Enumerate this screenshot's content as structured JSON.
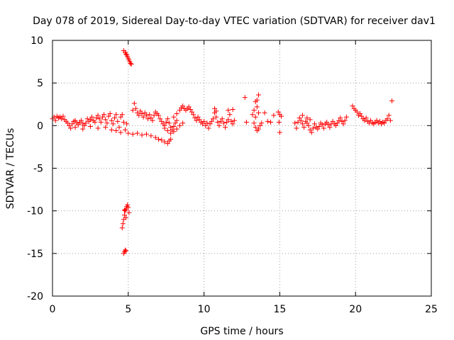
{
  "chart_data": {
    "type": "scatter",
    "title": "Day 078 of 2019, Sidereal Day-to-day VTEC variation (SDTVAR) for receiver dav1",
    "xlabel": "GPS time / hours",
    "ylabel": "SDTVAR / TECUs",
    "xlim": [
      0,
      25
    ],
    "ylim": [
      -20,
      10
    ],
    "x_ticks": [
      0,
      5,
      10,
      15,
      20,
      25
    ],
    "x_tick_labels": [
      "0",
      "5",
      "10",
      "15",
      "20",
      "25"
    ],
    "y_ticks": [
      -20,
      -15,
      -10,
      -5,
      0,
      5,
      10
    ],
    "y_tick_labels": [
      "-20",
      "-15",
      "-10",
      "-5",
      "0",
      "5",
      "10"
    ],
    "grid": true,
    "marker": "+",
    "color": "#ff0000",
    "series": [
      {
        "name": "SDTVAR",
        "points": [
          [
            0.0,
            0.8
          ],
          [
            0.1,
            1.0
          ],
          [
            0.2,
            0.6
          ],
          [
            0.3,
            1.1
          ],
          [
            0.4,
            0.9
          ],
          [
            0.5,
            1.0
          ],
          [
            0.6,
            0.8
          ],
          [
            0.7,
            1.1
          ],
          [
            0.8,
            0.7
          ],
          [
            0.9,
            0.5
          ],
          [
            1.0,
            0.3
          ],
          [
            1.1,
            0.0
          ],
          [
            1.2,
            -0.3
          ],
          [
            1.3,
            0.2
          ],
          [
            1.4,
            0.5
          ],
          [
            1.5,
            0.6
          ],
          [
            1.6,
            0.3
          ],
          [
            1.7,
            0.1
          ],
          [
            1.8,
            0.4
          ],
          [
            1.9,
            0.6
          ],
          [
            2.0,
            0.2
          ],
          [
            2.1,
            0.0
          ],
          [
            2.2,
            0.3
          ],
          [
            2.3,
            0.8
          ],
          [
            2.4,
            0.5
          ],
          [
            2.5,
            0.7
          ],
          [
            2.6,
            1.0
          ],
          [
            2.7,
            0.6
          ],
          [
            2.8,
            0.4
          ],
          [
            2.9,
            0.9
          ],
          [
            3.0,
            1.2
          ],
          [
            3.1,
            0.8
          ],
          [
            3.2,
            0.4
          ],
          [
            3.3,
            1.0
          ],
          [
            3.4,
            1.3
          ],
          [
            3.5,
            0.7
          ],
          [
            3.6,
            0.3
          ],
          [
            3.7,
            1.1
          ],
          [
            3.8,
            1.4
          ],
          [
            3.9,
            0.6
          ],
          [
            4.0,
            0.2
          ],
          [
            4.1,
            0.9
          ],
          [
            4.2,
            1.3
          ],
          [
            4.3,
            0.5
          ],
          [
            4.4,
            -0.2
          ],
          [
            4.5,
            1.0
          ],
          [
            4.6,
            1.3
          ],
          [
            4.7,
            0.4
          ],
          [
            4.8,
            -0.5
          ],
          [
            4.9,
            0.2
          ],
          [
            1.5,
            -0.2
          ],
          [
            2.0,
            -0.4
          ],
          [
            2.5,
            -0.1
          ],
          [
            3.0,
            -0.3
          ],
          [
            3.5,
            -0.2
          ],
          [
            3.9,
            -0.5
          ],
          [
            4.2,
            -0.6
          ],
          [
            4.5,
            -0.8
          ],
          [
            4.7,
            8.8
          ],
          [
            4.8,
            8.6
          ],
          [
            4.85,
            8.4
          ],
          [
            4.9,
            8.3
          ],
          [
            4.95,
            8.1
          ],
          [
            5.0,
            7.9
          ],
          [
            5.05,
            7.7
          ],
          [
            5.1,
            7.5
          ],
          [
            5.15,
            7.3
          ],
          [
            5.2,
            7.2
          ],
          [
            4.6,
            -12.0
          ],
          [
            4.65,
            -11.5
          ],
          [
            4.7,
            -11.0
          ],
          [
            4.75,
            -10.5
          ],
          [
            4.8,
            -10.0
          ],
          [
            4.85,
            -9.8
          ],
          [
            4.9,
            -9.5
          ],
          [
            4.95,
            -9.3
          ],
          [
            5.0,
            -9.6
          ],
          [
            5.05,
            -10.2
          ],
          [
            4.75,
            -9.9
          ],
          [
            4.85,
            -10.8
          ],
          [
            4.7,
            -15.0
          ],
          [
            4.75,
            -14.8
          ],
          [
            4.8,
            -14.6
          ],
          [
            4.85,
            -14.7
          ],
          [
            5.0,
            -0.9
          ],
          [
            5.3,
            -1.0
          ],
          [
            5.6,
            -0.9
          ],
          [
            5.9,
            -1.1
          ],
          [
            6.2,
            -1.0
          ],
          [
            6.5,
            -1.2
          ],
          [
            6.8,
            -1.4
          ],
          [
            7.0,
            -1.6
          ],
          [
            7.2,
            -1.7
          ],
          [
            7.4,
            -1.9
          ],
          [
            7.6,
            -2.1
          ],
          [
            7.7,
            -1.8
          ],
          [
            7.8,
            -1.6
          ],
          [
            5.3,
            1.8
          ],
          [
            5.4,
            2.6
          ],
          [
            5.5,
            2.0
          ],
          [
            5.6,
            1.5
          ],
          [
            5.7,
            1.2
          ],
          [
            5.8,
            1.7
          ],
          [
            5.9,
            1.4
          ],
          [
            6.0,
            1.0
          ],
          [
            6.1,
            1.5
          ],
          [
            6.2,
            1.2
          ],
          [
            6.3,
            0.8
          ],
          [
            6.4,
            1.3
          ],
          [
            6.5,
            0.9
          ],
          [
            6.6,
            0.6
          ],
          [
            6.7,
            1.2
          ],
          [
            6.8,
            1.6
          ],
          [
            6.9,
            1.4
          ],
          [
            7.0,
            1.2
          ],
          [
            7.1,
            0.8
          ],
          [
            7.2,
            0.5
          ],
          [
            7.3,
            0.2
          ],
          [
            7.4,
            0.0
          ],
          [
            7.5,
            0.4
          ],
          [
            7.6,
            0.8
          ],
          [
            7.7,
            0.3
          ],
          [
            7.8,
            -0.2
          ],
          [
            7.9,
            -0.5
          ],
          [
            8.0,
            -0.1
          ],
          [
            8.1,
            0.3
          ],
          [
            8.2,
            0.6
          ],
          [
            7.4,
            -0.3
          ],
          [
            7.6,
            -0.6
          ],
          [
            7.8,
            -0.9
          ],
          [
            8.0,
            -0.7
          ],
          [
            8.2,
            -0.4
          ],
          [
            8.4,
            0.0
          ],
          [
            8.6,
            0.3
          ],
          [
            8.0,
            1.0
          ],
          [
            8.2,
            1.4
          ],
          [
            8.4,
            1.8
          ],
          [
            8.5,
            2.1
          ],
          [
            8.6,
            2.3
          ],
          [
            8.7,
            2.0
          ],
          [
            8.8,
            1.8
          ],
          [
            8.9,
            2.0
          ],
          [
            9.0,
            2.2
          ],
          [
            9.1,
            1.9
          ],
          [
            9.2,
            1.6
          ],
          [
            9.3,
            1.3
          ],
          [
            9.4,
            0.9
          ],
          [
            9.5,
            0.6
          ],
          [
            9.6,
            1.0
          ],
          [
            9.7,
            0.7
          ],
          [
            9.8,
            0.4
          ],
          [
            9.9,
            0.2
          ],
          [
            10.0,
            0.5
          ],
          [
            10.1,
            0.0
          ],
          [
            10.2,
            0.3
          ],
          [
            10.3,
            -0.3
          ],
          [
            10.4,
            0.2
          ],
          [
            10.5,
            0.5
          ],
          [
            10.6,
            0.8
          ],
          [
            10.7,
            1.5
          ],
          [
            10.8,
            1.0
          ],
          [
            10.9,
            0.4
          ],
          [
            11.0,
            0.0
          ],
          [
            11.1,
            0.5
          ],
          [
            11.2,
            0.8
          ],
          [
            11.3,
            0.3
          ],
          [
            11.4,
            -0.2
          ],
          [
            11.5,
            0.4
          ],
          [
            11.6,
            0.7
          ],
          [
            11.7,
            1.3
          ],
          [
            11.8,
            0.5
          ],
          [
            11.9,
            0.2
          ],
          [
            12.0,
            0.6
          ],
          [
            10.7,
            2.0
          ],
          [
            10.8,
            1.7
          ],
          [
            11.6,
            1.8
          ],
          [
            11.9,
            1.9
          ],
          [
            12.7,
            3.3
          ],
          [
            12.8,
            0.4
          ],
          [
            13.2,
            1.3
          ],
          [
            13.3,
            1.8
          ],
          [
            13.4,
            2.8
          ],
          [
            13.5,
            3.0
          ],
          [
            13.6,
            3.6
          ],
          [
            13.5,
            2.2
          ],
          [
            13.6,
            1.5
          ],
          [
            13.4,
            1.0
          ],
          [
            13.3,
            0.3
          ],
          [
            13.4,
            -0.2
          ],
          [
            13.5,
            -0.6
          ],
          [
            13.6,
            -0.4
          ],
          [
            13.7,
            0.0
          ],
          [
            13.8,
            0.3
          ],
          [
            14.0,
            1.5
          ],
          [
            14.2,
            0.5
          ],
          [
            14.4,
            0.4
          ],
          [
            14.6,
            1.2
          ],
          [
            14.9,
            1.6
          ],
          [
            15.0,
            1.3
          ],
          [
            15.1,
            1.1
          ],
          [
            14.95,
            0.4
          ],
          [
            15.0,
            -0.8
          ],
          [
            16.0,
            0.3
          ],
          [
            16.1,
            -0.3
          ],
          [
            16.2,
            0.4
          ],
          [
            16.3,
            0.9
          ],
          [
            16.4,
            0.6
          ],
          [
            16.5,
            0.2
          ],
          [
            16.6,
            -0.2
          ],
          [
            16.7,
            0.5
          ],
          [
            16.8,
            0.3
          ],
          [
            16.9,
            0.0
          ],
          [
            17.0,
            -0.5
          ],
          [
            17.1,
            -0.8
          ],
          [
            17.2,
            -0.3
          ],
          [
            17.3,
            0.2
          ],
          [
            17.4,
            -0.2
          ],
          [
            17.5,
            -0.4
          ],
          [
            17.6,
            -0.1
          ],
          [
            17.7,
            0.3
          ],
          [
            17.8,
            0.1
          ],
          [
            17.9,
            -0.3
          ],
          [
            18.0,
            0.2
          ],
          [
            18.1,
            0.4
          ],
          [
            18.2,
            0.1
          ],
          [
            18.3,
            -0.2
          ],
          [
            18.4,
            0.2
          ],
          [
            18.5,
            0.5
          ],
          [
            18.6,
            0.2
          ],
          [
            18.7,
            0.0
          ],
          [
            18.8,
            0.3
          ],
          [
            18.9,
            0.6
          ],
          [
            19.0,
            0.9
          ],
          [
            19.1,
            0.5
          ],
          [
            19.2,
            0.2
          ],
          [
            19.3,
            0.6
          ],
          [
            19.4,
            1.0
          ],
          [
            16.5,
            1.2
          ],
          [
            16.8,
            0.9
          ],
          [
            17.0,
            0.7
          ],
          [
            19.8,
            2.3
          ],
          [
            19.9,
            2.0
          ],
          [
            20.0,
            1.8
          ],
          [
            20.1,
            1.6
          ],
          [
            20.2,
            1.2
          ],
          [
            20.3,
            1.4
          ],
          [
            20.4,
            1.1
          ],
          [
            20.5,
            0.8
          ],
          [
            20.6,
            0.6
          ],
          [
            20.7,
            0.9
          ],
          [
            20.8,
            0.5
          ],
          [
            20.9,
            0.3
          ],
          [
            21.0,
            0.6
          ],
          [
            21.1,
            0.3
          ],
          [
            21.2,
            0.2
          ],
          [
            21.3,
            0.4
          ],
          [
            21.4,
            0.6
          ],
          [
            21.5,
            0.3
          ],
          [
            21.6,
            0.5
          ],
          [
            21.7,
            0.2
          ],
          [
            21.8,
            0.4
          ],
          [
            21.9,
            0.3
          ],
          [
            22.0,
            0.6
          ],
          [
            22.1,
            0.8
          ],
          [
            22.2,
            1.2
          ],
          [
            22.3,
            0.6
          ],
          [
            22.4,
            2.9
          ]
        ]
      }
    ]
  }
}
